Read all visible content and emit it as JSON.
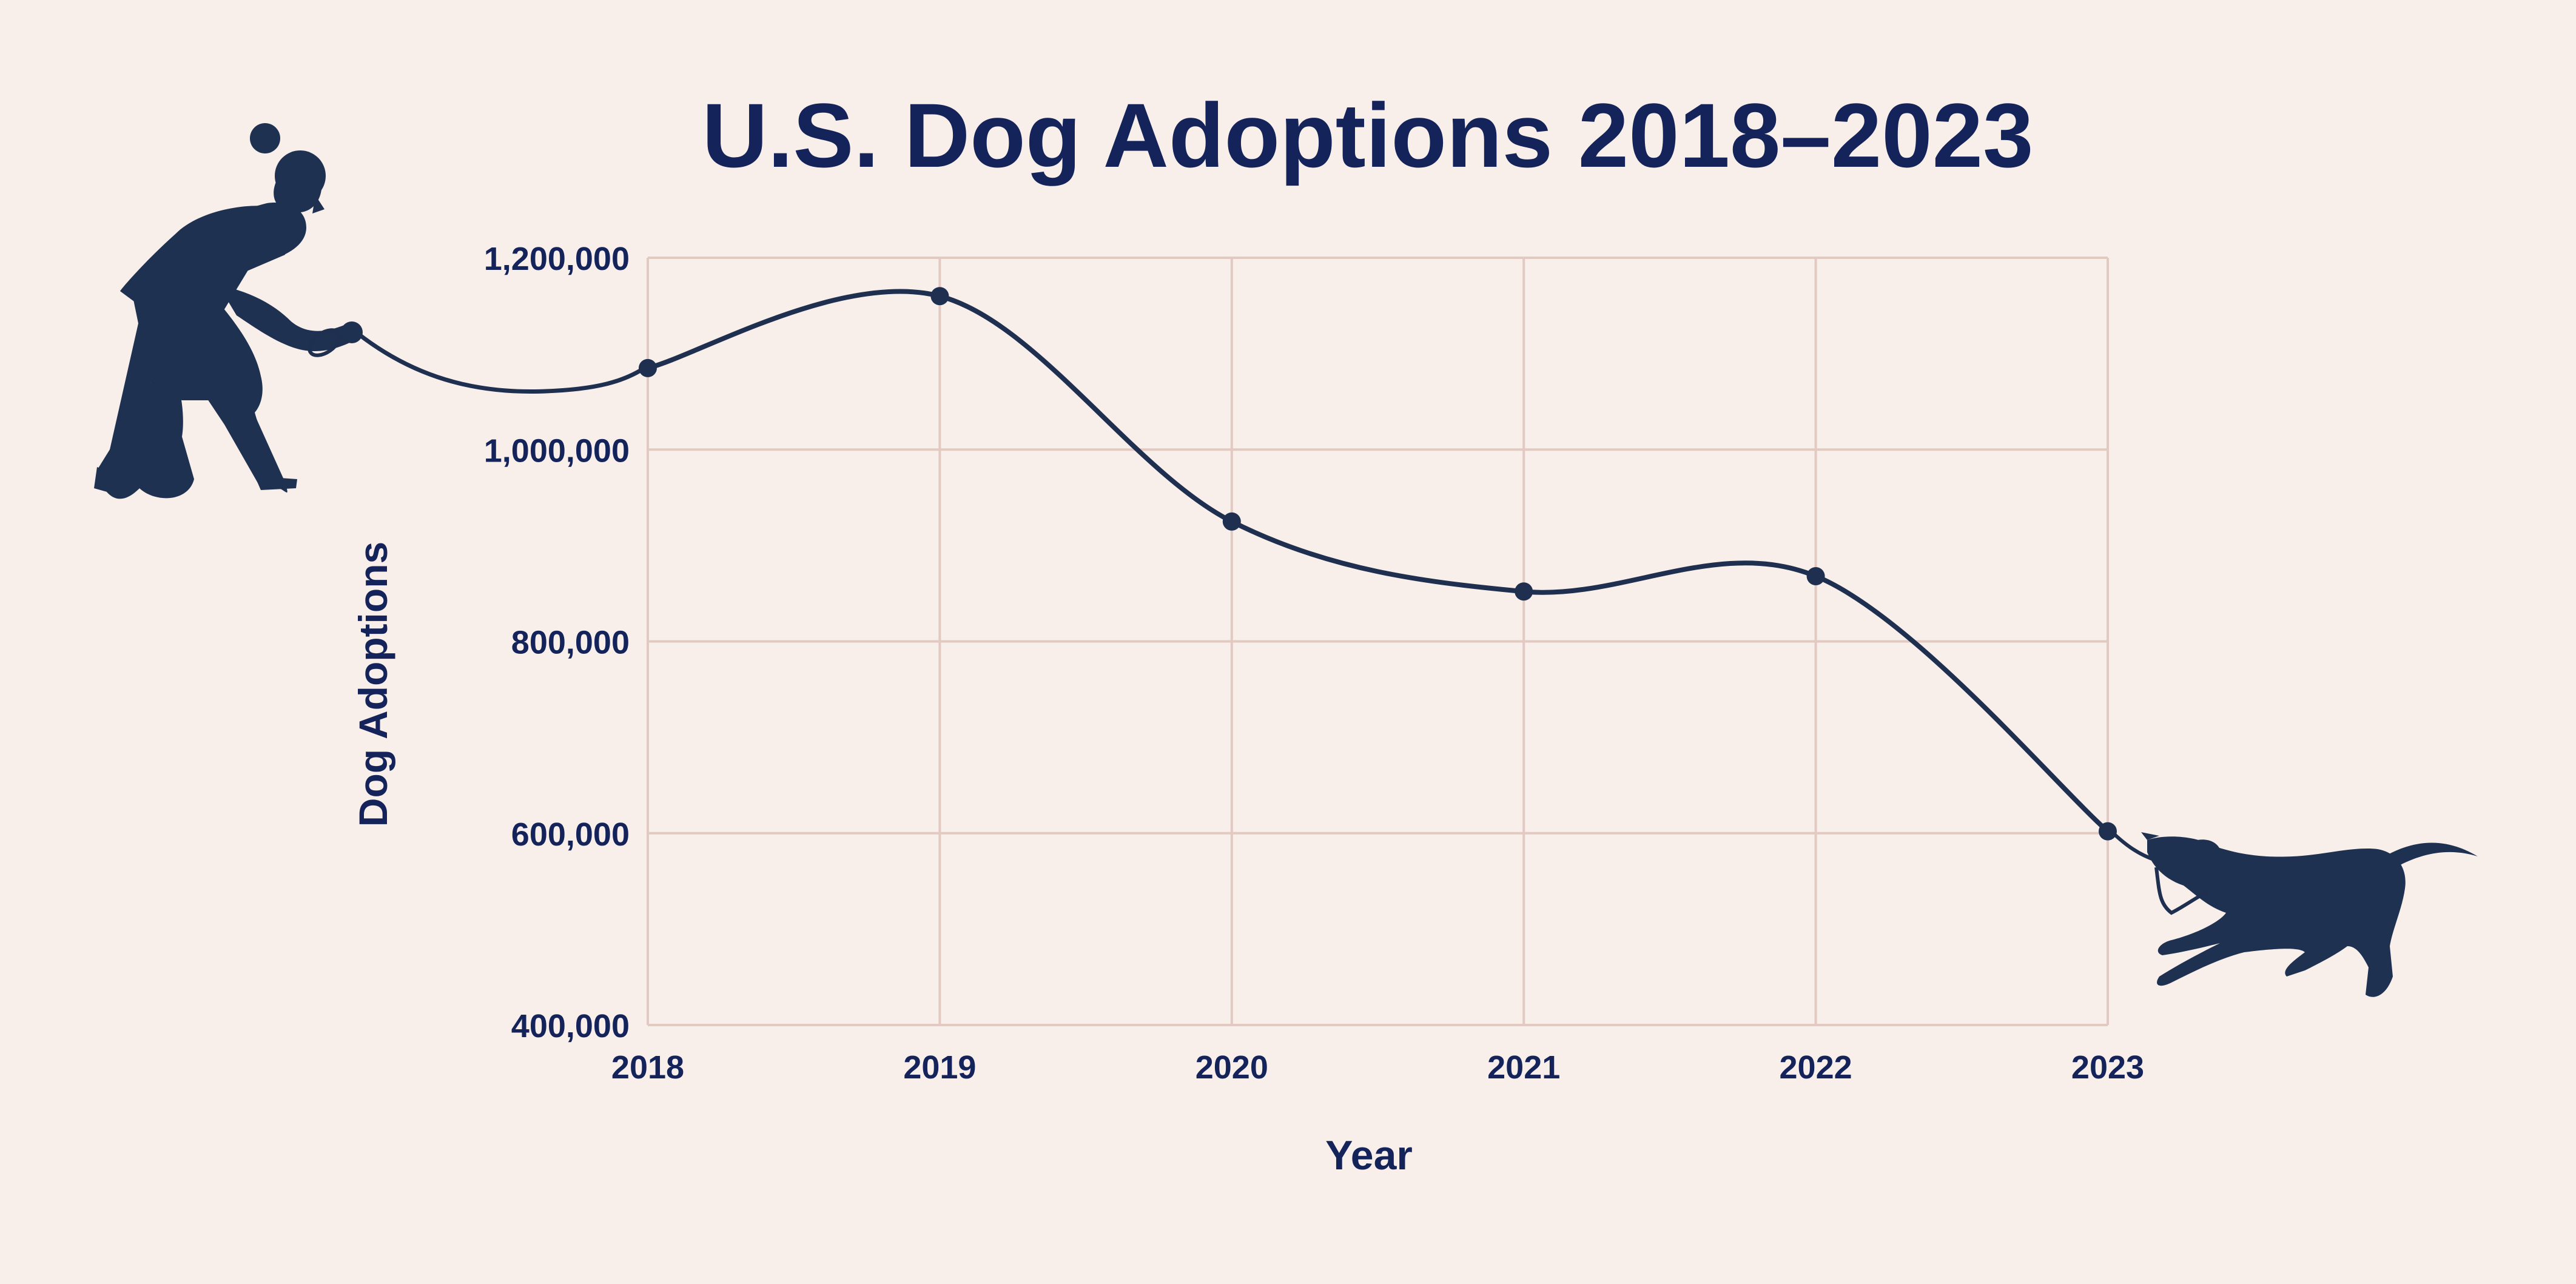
{
  "chart_data": {
    "type": "line",
    "title": "U.S. Dog Adoptions 2018–2023",
    "xlabel": "Year",
    "ylabel": "Dog Adoptions",
    "categories": [
      "2018",
      "2019",
      "2020",
      "2021",
      "2022",
      "2023"
    ],
    "series": [
      {
        "values": [
          1085000,
          1160000,
          925000,
          852000,
          868000,
          602000
        ]
      }
    ],
    "ylim": [
      400000,
      1200000
    ],
    "yticks": [
      400000,
      600000,
      800000,
      1000000,
      1200000
    ],
    "ytick_labels": [
      "400,000",
      "600,000",
      "800,000",
      "1,000,000",
      "1,200,000"
    ],
    "grid": true,
    "colors": {
      "background": "#f8eeea",
      "line": "#1e2f4f",
      "grid": "#e2c9c2",
      "text": "#14235a",
      "silhouette": "#1e3150"
    },
    "decorations": [
      "woman-walking-silhouette-icon",
      "dog-pulling-leash-silhouette-icon"
    ]
  }
}
